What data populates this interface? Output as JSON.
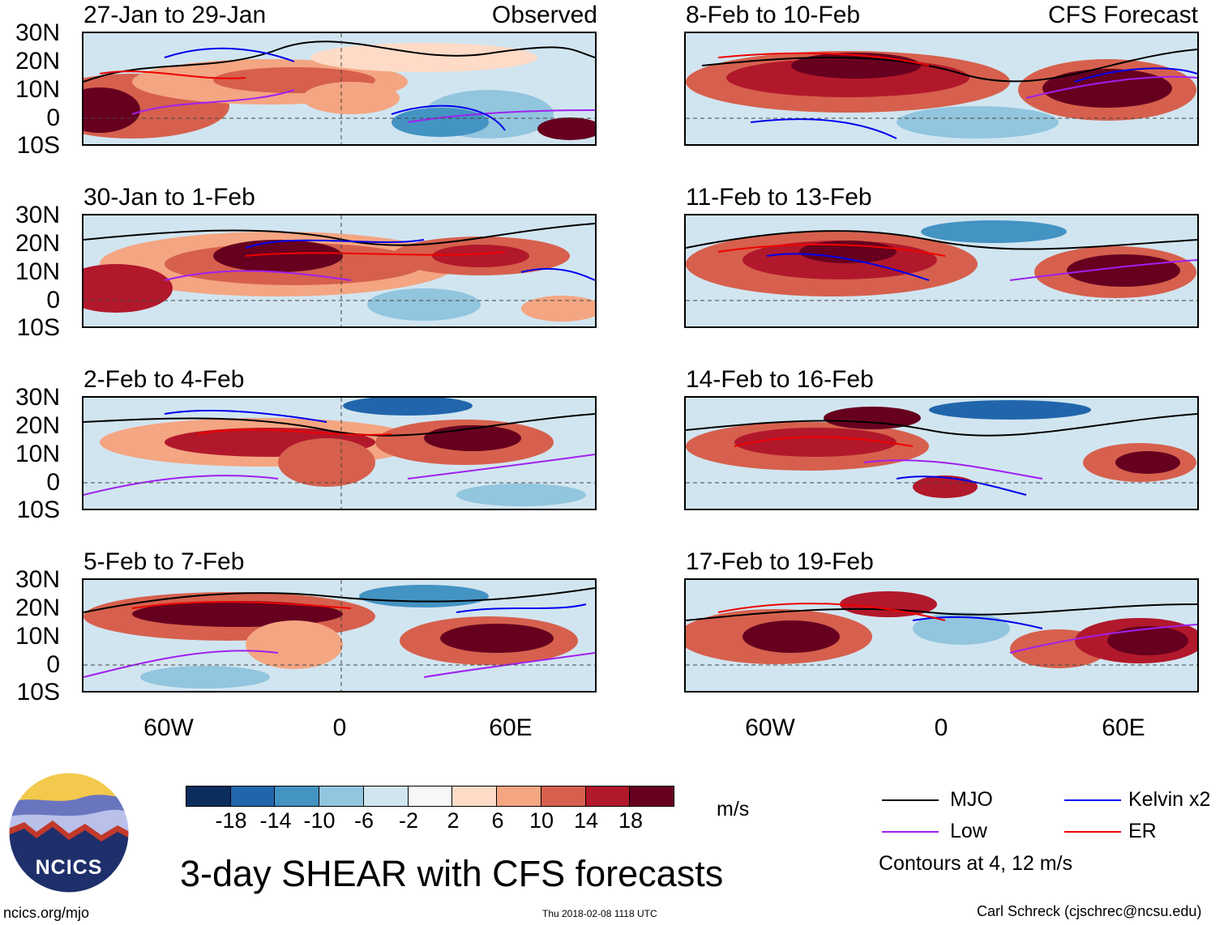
{
  "headers": {
    "left": "Observed",
    "right": "CFS Forecast"
  },
  "panels": [
    {
      "title": "27-Jan to 29-Jan"
    },
    {
      "title": "30-Jan to 1-Feb"
    },
    {
      "title": "2-Feb to 4-Feb"
    },
    {
      "title": "5-Feb to 7-Feb"
    },
    {
      "title": "8-Feb to 10-Feb"
    },
    {
      "title": "11-Feb to 13-Feb"
    },
    {
      "title": "14-Feb to 16-Feb"
    },
    {
      "title": "17-Feb to 19-Feb"
    }
  ],
  "lat_labels": [
    "30N",
    "20N",
    "10N",
    "0",
    "10S"
  ],
  "lon_labels": [
    "60W",
    "0",
    "60E"
  ],
  "colorbar": {
    "labels": [
      "-18",
      "-14",
      "-10",
      "-6",
      "-2",
      "2",
      "6",
      "10",
      "14",
      "18"
    ],
    "colors": [
      "#0b2d5e",
      "#2166ac",
      "#4393c3",
      "#92c5de",
      "#d1e5f0",
      "#f7f7f7",
      "#fddbc7",
      "#f4a582",
      "#d6604d",
      "#b2182b",
      "#67001f"
    ],
    "unit": "m/s"
  },
  "legend": {
    "items": [
      {
        "label": "MJO",
        "color": "#000000"
      },
      {
        "label": "Kelvin x2",
        "color": "#0000ee"
      },
      {
        "label": "Low",
        "color": "#a020f0"
      },
      {
        "label": "ER",
        "color": "#ee0000"
      }
    ],
    "note": "Contours at 4, 12 m/s"
  },
  "title": "3-day SHEAR with CFS forecasts",
  "logo_text": "NCICS",
  "footer": {
    "left": "ncics.org/mjo",
    "center": "Thu 2018-02-08 1118 UTC",
    "right": "Carl Schreck (cjschrec@ncsu.edu)"
  }
}
